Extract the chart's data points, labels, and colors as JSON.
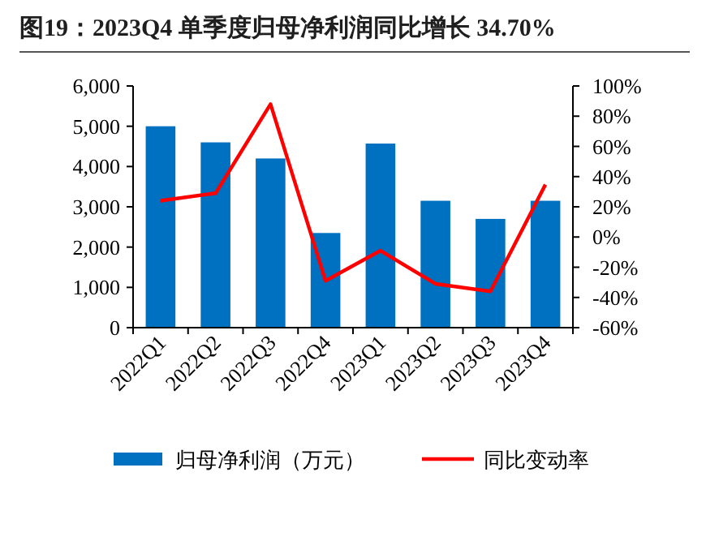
{
  "chart_data": {
    "type": "bar",
    "title": "图19：2023Q4 单季度归母净利润同比增长 34.70%",
    "categories": [
      "2022Q1",
      "2022Q2",
      "2022Q3",
      "2022Q4",
      "2023Q1",
      "2023Q2",
      "2023Q3",
      "2023Q4"
    ],
    "series": [
      {
        "name": "归母净利润（万元）",
        "color": "#0070c0",
        "values": [
          5000,
          4600,
          4200,
          2350,
          4570,
          3150,
          2700,
          3150
        ]
      },
      {
        "name": "同比变动率",
        "type": "line",
        "axis": "y2",
        "color": "#ff0000",
        "values": [
          24,
          29,
          88,
          -29,
          -9,
          -31,
          -36,
          34.7
        ]
      }
    ],
    "ylim": [
      0,
      6000
    ],
    "yticks": [
      0,
      {
        "value": 1000,
        "label": "1,000"
      },
      {
        "value": 2000,
        "label": "2,000"
      },
      {
        "value": 3000,
        "label": "3,000"
      },
      {
        "value": 4000,
        "label": "4,000"
      },
      {
        "value": 5000,
        "label": "5,000"
      },
      {
        "value": 6000,
        "label": "6,000"
      }
    ],
    "y2lim": [
      -60,
      100
    ],
    "y2ticks": [
      {
        "value": -60,
        "label": "-60%"
      },
      {
        "value": -40,
        "label": "-40%"
      },
      {
        "value": -20,
        "label": "-20%"
      },
      {
        "value": 0,
        "label": "0%"
      },
      {
        "value": 20,
        "label": "20%"
      },
      {
        "value": 40,
        "label": "40%"
      },
      {
        "value": 60,
        "label": "60%"
      },
      {
        "value": 80,
        "label": "80%"
      },
      {
        "value": 100,
        "label": "100%"
      }
    ],
    "legend": "bottom",
    "grid": false
  }
}
